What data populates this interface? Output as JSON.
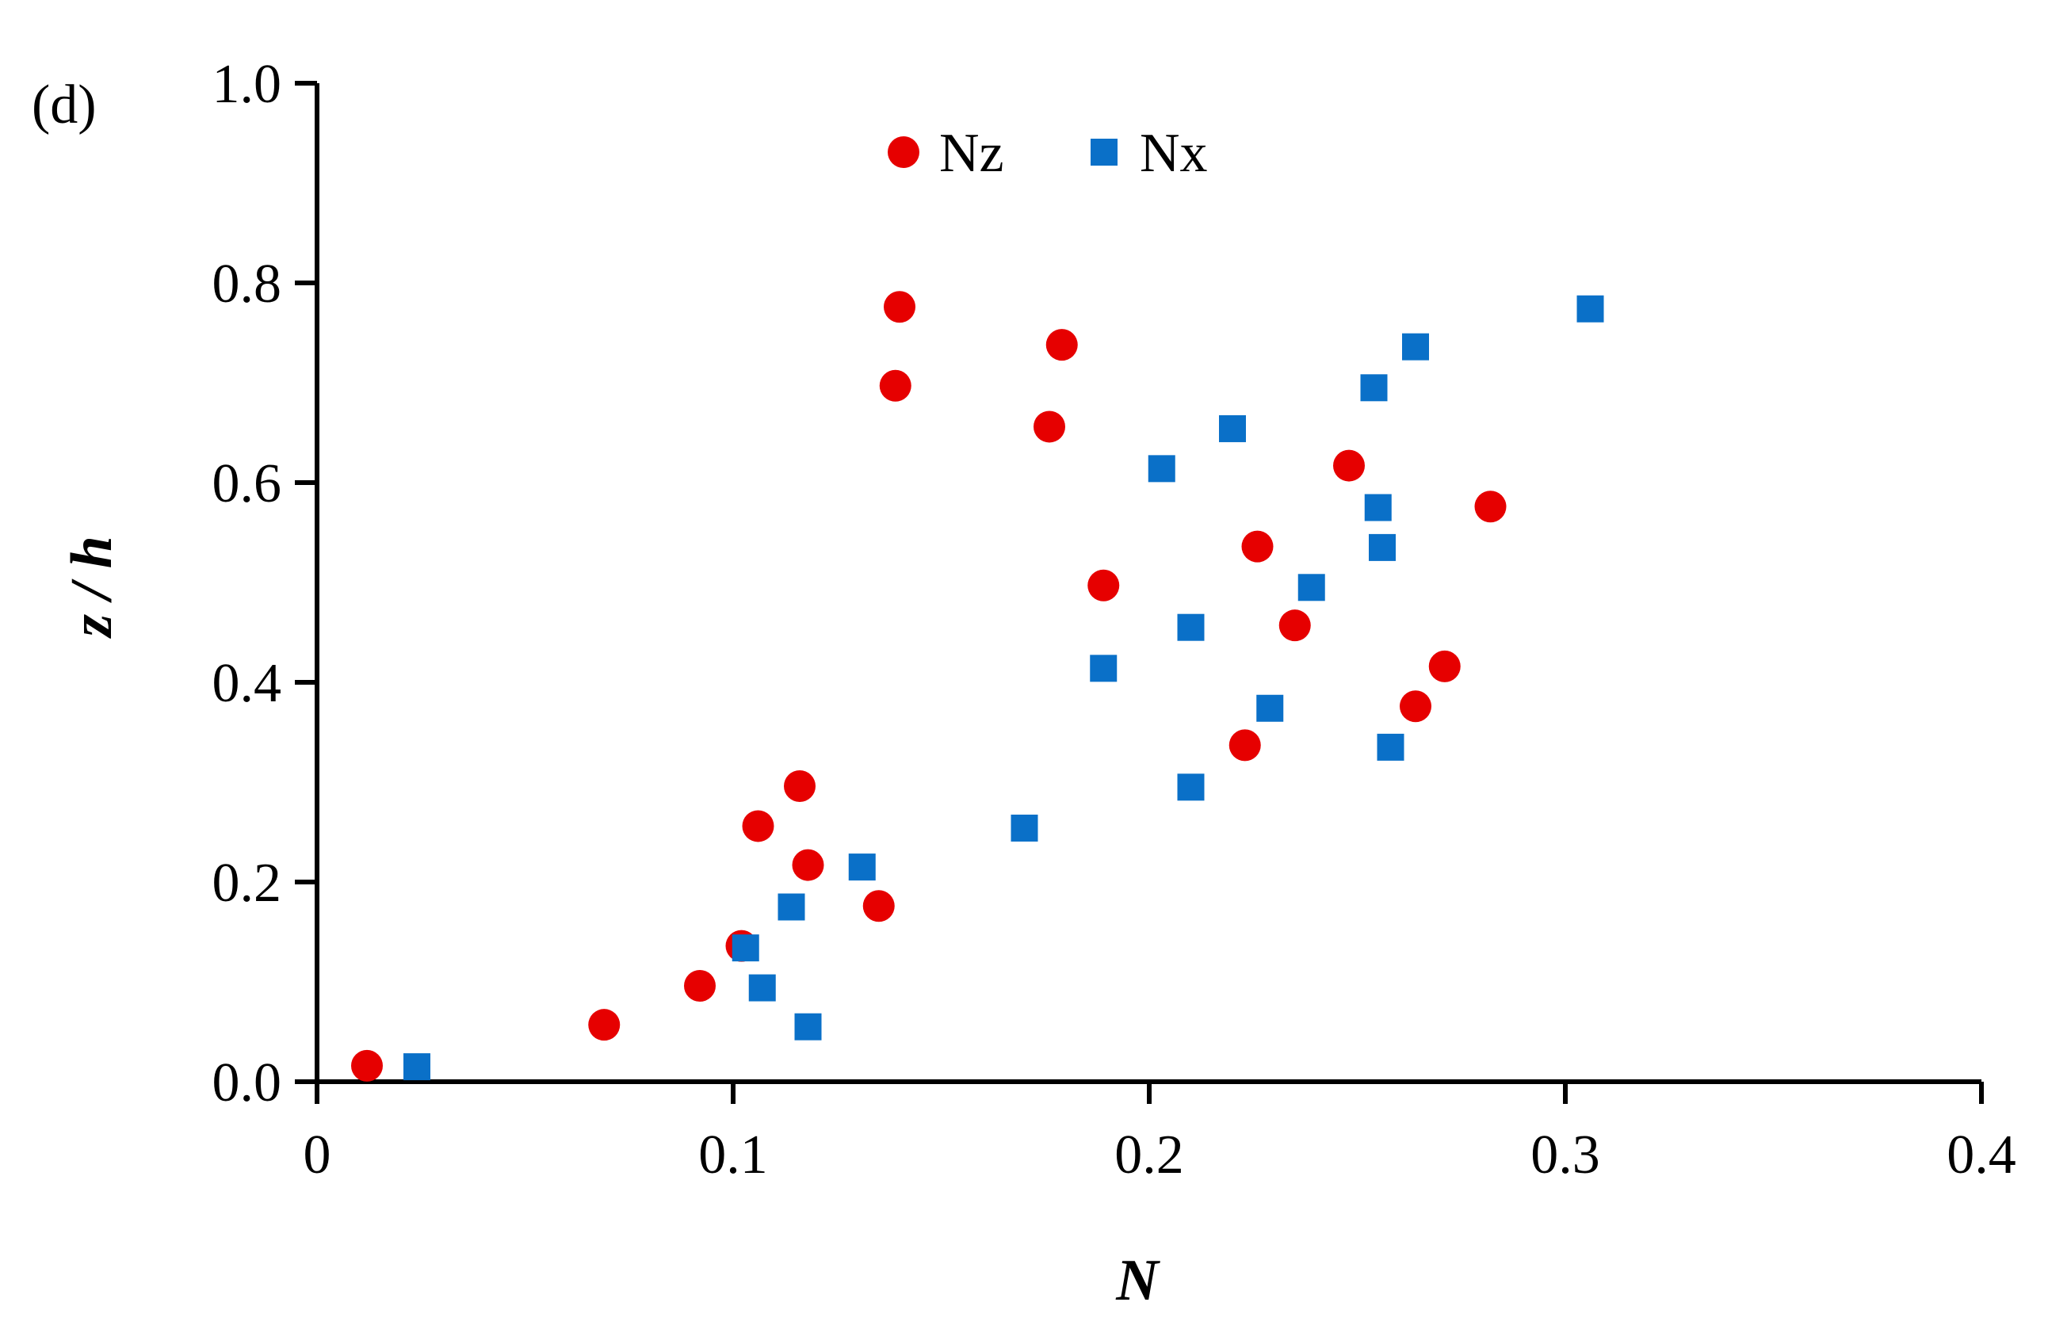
{
  "panel_label": "(d)",
  "colors": {
    "Nz": "#e60000",
    "Nx": "#0a70c8",
    "axis": "#000000"
  },
  "chart_data": {
    "type": "scatter",
    "xlabel": "N",
    "ylabel": "z / h",
    "xlim": [
      0,
      0.4
    ],
    "ylim": [
      0,
      1.0
    ],
    "x_ticks": [
      "0",
      "0.1",
      "0.2",
      "0.3",
      "0.4"
    ],
    "y_ticks": [
      "0.0",
      "0.2",
      "0.4",
      "0.6",
      "0.8",
      "1.0"
    ],
    "grid": false,
    "legend": {
      "placement": "top-center"
    },
    "series": [
      {
        "name": "Nz",
        "marker": "circle",
        "points": [
          [
            0.012,
            0.016
          ],
          [
            0.069,
            0.057
          ],
          [
            0.092,
            0.096
          ],
          [
            0.102,
            0.136
          ],
          [
            0.135,
            0.176
          ],
          [
            0.118,
            0.217
          ],
          [
            0.106,
            0.256
          ],
          [
            0.116,
            0.296
          ],
          [
            0.223,
            0.337
          ],
          [
            0.264,
            0.376
          ],
          [
            0.271,
            0.416
          ],
          [
            0.235,
            0.457
          ],
          [
            0.189,
            0.497
          ],
          [
            0.226,
            0.536
          ],
          [
            0.282,
            0.576
          ],
          [
            0.248,
            0.617
          ],
          [
            0.176,
            0.656
          ],
          [
            0.139,
            0.697
          ],
          [
            0.179,
            0.738
          ],
          [
            0.14,
            0.776
          ]
        ]
      },
      {
        "name": "Nx",
        "marker": "square",
        "points": [
          [
            0.024,
            0.015
          ],
          [
            0.118,
            0.055
          ],
          [
            0.107,
            0.094
          ],
          [
            0.103,
            0.134
          ],
          [
            0.114,
            0.175
          ],
          [
            0.131,
            0.215
          ],
          [
            0.17,
            0.254
          ],
          [
            0.21,
            0.295
          ],
          [
            0.258,
            0.335
          ],
          [
            0.229,
            0.374
          ],
          [
            0.189,
            0.414
          ],
          [
            0.21,
            0.455
          ],
          [
            0.239,
            0.495
          ],
          [
            0.256,
            0.535
          ],
          [
            0.255,
            0.575
          ],
          [
            0.203,
            0.614
          ],
          [
            0.22,
            0.654
          ],
          [
            0.254,
            0.695
          ],
          [
            0.264,
            0.736
          ],
          [
            0.306,
            0.774
          ]
        ]
      }
    ]
  }
}
